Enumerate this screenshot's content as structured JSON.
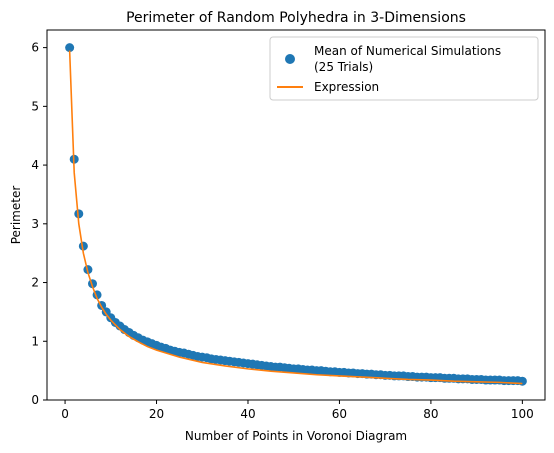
{
  "chart_data": {
    "type": "scatter",
    "title": "Perimeter of Random Polyhedra in 3-Dimensions",
    "xlabel": "Number of Points in Voronoi Diagram",
    "ylabel": "Perimeter",
    "xlim": [
      -3.95,
      104.95
    ],
    "ylim": [
      0,
      6.3
    ],
    "xticks": [
      0,
      20,
      40,
      60,
      80,
      100
    ],
    "yticks": [
      0,
      1,
      2,
      3,
      4,
      5,
      6
    ],
    "grid": false,
    "legend_position": "top-right",
    "colors": {
      "scatter": "#1f77b4",
      "line": "#ff7f0e"
    },
    "series": [
      {
        "name": "Mean of Numerical Simulations\n(25 Trials)",
        "type": "scatter",
        "x": [
          1,
          2,
          3,
          4,
          5,
          6,
          7,
          8,
          9,
          10,
          11,
          12,
          13,
          14,
          15,
          16,
          17,
          18,
          19,
          20,
          21,
          22,
          23,
          24,
          25,
          26,
          27,
          28,
          29,
          30,
          31,
          32,
          33,
          34,
          35,
          36,
          37,
          38,
          39,
          40,
          41,
          42,
          43,
          44,
          45,
          46,
          47,
          48,
          49,
          50,
          51,
          52,
          53,
          54,
          55,
          56,
          57,
          58,
          59,
          60,
          61,
          62,
          63,
          64,
          65,
          66,
          67,
          68,
          69,
          70,
          71,
          72,
          73,
          74,
          75,
          76,
          77,
          78,
          79,
          80,
          81,
          82,
          83,
          84,
          85,
          86,
          87,
          88,
          89,
          90,
          91,
          92,
          93,
          94,
          95,
          96,
          97,
          98,
          99,
          100
        ],
        "y": [
          6.0,
          4.1,
          3.17,
          2.62,
          2.22,
          1.98,
          1.79,
          1.61,
          1.5,
          1.4,
          1.32,
          1.26,
          1.2,
          1.15,
          1.1,
          1.06,
          1.02,
          0.99,
          0.96,
          0.93,
          0.9,
          0.88,
          0.85,
          0.83,
          0.81,
          0.8,
          0.78,
          0.76,
          0.74,
          0.73,
          0.72,
          0.7,
          0.69,
          0.68,
          0.67,
          0.66,
          0.65,
          0.64,
          0.63,
          0.62,
          0.61,
          0.6,
          0.59,
          0.58,
          0.57,
          0.56,
          0.56,
          0.55,
          0.54,
          0.53,
          0.53,
          0.52,
          0.51,
          0.51,
          0.5,
          0.5,
          0.49,
          0.48,
          0.48,
          0.47,
          0.47,
          0.46,
          0.46,
          0.45,
          0.45,
          0.44,
          0.44,
          0.43,
          0.43,
          0.42,
          0.42,
          0.41,
          0.41,
          0.41,
          0.4,
          0.4,
          0.39,
          0.39,
          0.39,
          0.38,
          0.38,
          0.38,
          0.37,
          0.37,
          0.37,
          0.36,
          0.36,
          0.36,
          0.35,
          0.35,
          0.35,
          0.34,
          0.34,
          0.34,
          0.34,
          0.33,
          0.33,
          0.33,
          0.33,
          0.32
        ]
      },
      {
        "name": "Expression",
        "type": "line",
        "x": [
          1,
          2,
          3,
          4,
          5,
          6,
          7,
          8,
          9,
          10,
          12,
          14,
          16,
          18,
          20,
          25,
          30,
          35,
          40,
          45,
          50,
          55,
          60,
          65,
          70,
          75,
          80,
          85,
          90,
          95,
          100
        ],
        "y": [
          5.95,
          3.87,
          3.0,
          2.5,
          2.17,
          1.93,
          1.73,
          1.58,
          1.46,
          1.36,
          1.2,
          1.08,
          0.99,
          0.91,
          0.85,
          0.73,
          0.64,
          0.58,
          0.53,
          0.49,
          0.46,
          0.43,
          0.41,
          0.39,
          0.37,
          0.35,
          0.34,
          0.32,
          0.31,
          0.3,
          0.28
        ]
      }
    ]
  }
}
